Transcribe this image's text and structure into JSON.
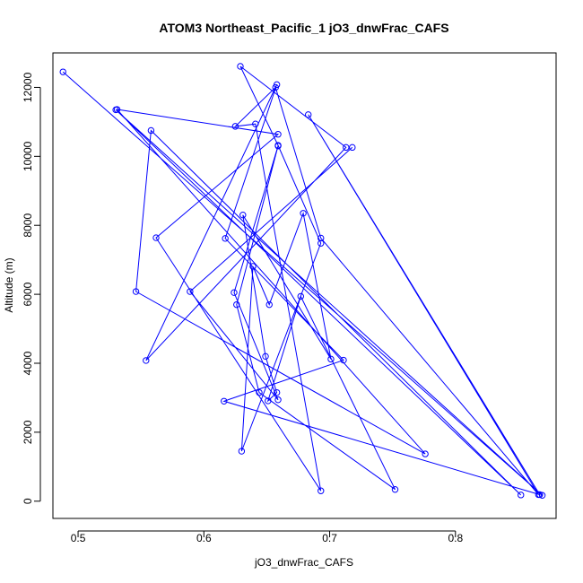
{
  "chart_data": {
    "type": "line",
    "title": "ATOM3 Northeast_Pacific_1 jO3_dnwFrac_CAFS",
    "xlabel": "jO3_dnwFrac_CAFS",
    "ylabel": "Altitude (m)",
    "xlim": [
      0.48,
      0.88
    ],
    "ylim": [
      -500,
      13000
    ],
    "xticks": [
      0.5,
      0.6,
      0.7,
      0.8
    ],
    "xtick_labels": [
      "0.5",
      "0.6",
      "0.7",
      "0.8"
    ],
    "yticks": [
      0,
      2000,
      4000,
      6000,
      8000,
      10000,
      12000
    ],
    "ytick_labels": [
      "0",
      "2000",
      "4000",
      "6000",
      "8000",
      "10000",
      "12000"
    ],
    "grid": false,
    "marker": "open-circle",
    "colors": {
      "series": "#0000ff",
      "axis": "#000000",
      "background": "#ffffff"
    },
    "series": [
      {
        "x": [
          0.488,
          0.869,
          0.53,
          0.852,
          0.558,
          0.546,
          0.776,
          0.531,
          0.659,
          0.562,
          0.693,
          0.641,
          0.625,
          0.657,
          0.693,
          0.866,
          0.683,
          0.867,
          0.616,
          0.711,
          0.617,
          0.658,
          0.554,
          0.713,
          0.629,
          0.659,
          0.693,
          0.63,
          0.639,
          0.652,
          0.679,
          0.701,
          0.631,
          0.649,
          0.658,
          0.651,
          0.677,
          0.752,
          0.644,
          0.626,
          0.659,
          0.624,
          0.659,
          0.589,
          0.718
        ],
        "y": [
          12450,
          170,
          11350,
          180,
          10750,
          6080,
          1370,
          11360,
          10640,
          7640,
          300,
          10940,
          10870,
          12000,
          7630,
          190,
          11210,
          190,
          2900,
          4090,
          7620,
          12080,
          4080,
          10260,
          12610,
          10320,
          7480,
          1450,
          6810,
          5700,
          8350,
          4120,
          8300,
          4200,
          3150,
          2910,
          5940,
          340,
          3150,
          5700,
          10300,
          6050,
          2940,
          6080,
          10260
        ]
      }
    ]
  }
}
